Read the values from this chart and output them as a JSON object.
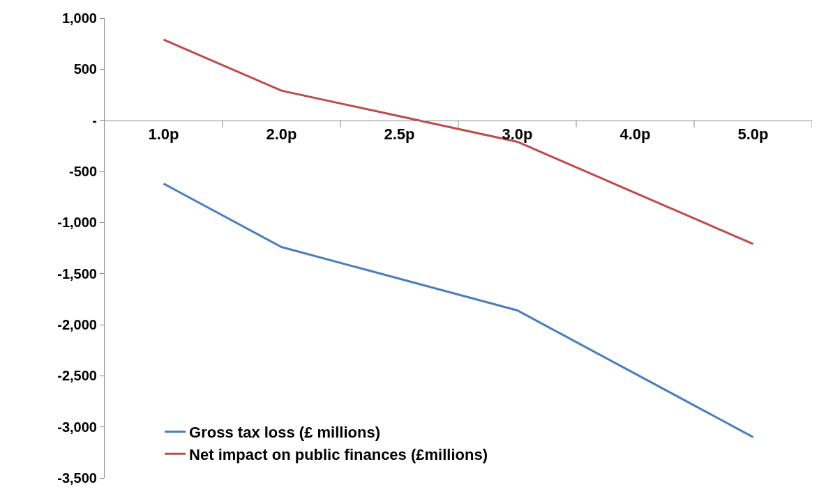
{
  "chart_data": {
    "type": "line",
    "categories": [
      "1.0p",
      "2.0p",
      "2.5p",
      "3.0p",
      "4.0p",
      "5.0p"
    ],
    "series": [
      {
        "name": "Gross tax loss (£ millions)",
        "color": "#4a7ebb",
        "values": [
          -620,
          -1240,
          -1550,
          -1860,
          -2480,
          -3100
        ]
      },
      {
        "name": "Net impact on public finances (£millions)",
        "color": "#be4b48",
        "values": [
          790,
          290,
          40,
          -210,
          -710,
          -1210
        ]
      }
    ],
    "ylim": [
      -3500,
      1000
    ],
    "yticks": [
      {
        "value": 1000,
        "label": "1,000"
      },
      500,
      {
        "value": 0,
        "label": "-"
      },
      -500,
      {
        "value": -1000,
        "label": "-1,000"
      },
      {
        "value": -1500,
        "label": "-1,500"
      },
      {
        "value": -2000,
        "label": "-2,000"
      },
      {
        "value": -2500,
        "label": "-2,500"
      },
      {
        "value": -3000,
        "label": "-3,000"
      },
      {
        "value": -3500,
        "label": "-3,500"
      }
    ],
    "legend": "bottom left",
    "marker": "none",
    "line_style": "solid"
  }
}
